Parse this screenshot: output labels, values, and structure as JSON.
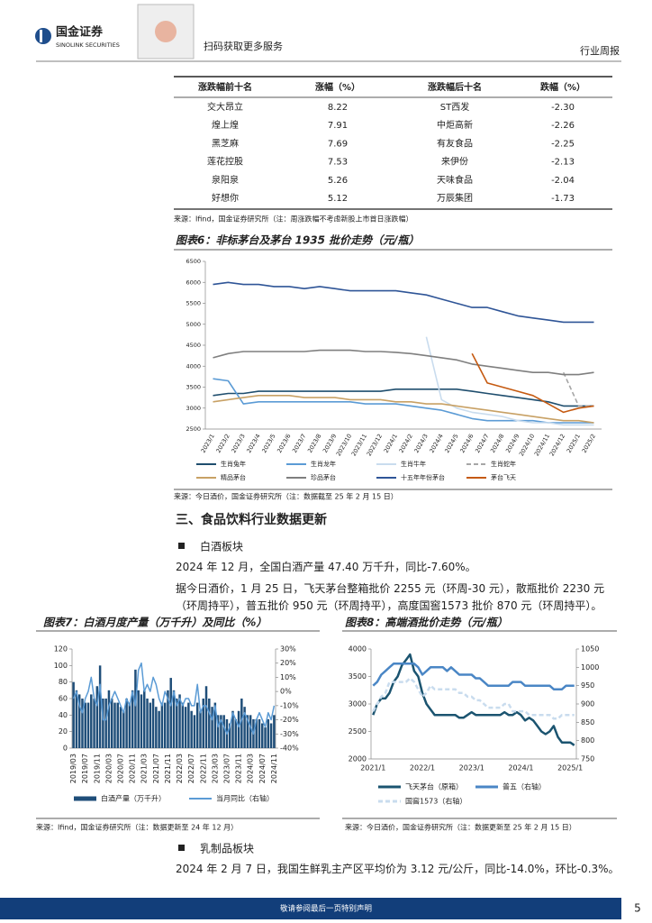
{
  "header": {
    "logo_cn": "国金证券",
    "logo_en": "SINOLINK SECURITIES",
    "qr_caption": "扫码获取更多服务",
    "report_type": "行业周报"
  },
  "table": {
    "headers": [
      "涨跌幅前十名",
      "涨幅（%）",
      "涨跌幅后十名",
      "跌幅（%）"
    ],
    "rows": [
      [
        "交大昂立",
        "8.22",
        "ST西发",
        "-2.30"
      ],
      [
        "煌上煌",
        "7.91",
        "中炬高新",
        "-2.26"
      ],
      [
        "黑芝麻",
        "7.69",
        "有友食品",
        "-2.25"
      ],
      [
        "莲花控股",
        "7.53",
        "来伊份",
        "-2.13"
      ],
      [
        "泉阳泉",
        "5.26",
        "天味食品",
        "-2.04"
      ],
      [
        "好想你",
        "5.12",
        "万辰集团",
        "-1.73"
      ]
    ]
  },
  "table_source": "来源：Ifind，国金证券研究所（注：周涨跌幅不考虑新股上市首日涨跌幅）",
  "charts": [
    {
      "type": "line",
      "title": "图表6：非标茅台及茅台 1935 批价走势（元/瓶）",
      "source": "来源：今日酒价，国金证券研究所（注：数据截至 25 年 2 月 15 日）",
      "categories": [
        "2023/1",
        "2023/2",
        "2023/3",
        "2023/4",
        "2023/5",
        "2023/6",
        "2023/7",
        "2023/8",
        "2023/9",
        "2023/10",
        "2023/11",
        "2023/12",
        "2024/1",
        "2024/2",
        "2024/3",
        "2024/4",
        "2024/5",
        "2024/6",
        "2024/7",
        "2024/8",
        "2024/9",
        "2024/10",
        "2024/11",
        "2024/12",
        "2025/1",
        "2025/2"
      ],
      "ylim": [
        2500,
        6500
      ],
      "yticks": [
        2500,
        3000,
        3500,
        4000,
        4500,
        5000,
        5500,
        6000,
        6500
      ],
      "series": [
        {
          "name": "生肖兔年",
          "color": "#1f4e6e",
          "values": [
            3300,
            3350,
            3350,
            3400,
            3400,
            3400,
            3400,
            3400,
            3400,
            3400,
            3400,
            3400,
            3450,
            3450,
            3450,
            3450,
            3450,
            3400,
            3350,
            3300,
            3250,
            3200,
            3150,
            3050,
            3050,
            3050
          ]
        },
        {
          "name": "生肖龙年",
          "color": "#5b9bd5",
          "values": [
            3700,
            3650,
            3100,
            3150,
            3150,
            3150,
            3150,
            3150,
            3150,
            3150,
            3100,
            3100,
            3100,
            3050,
            3000,
            2950,
            2850,
            2750,
            2700,
            2700,
            2700,
            2700,
            2650,
            2650,
            2650,
            2650
          ]
        },
        {
          "name": "生肖牛年",
          "color": "#c9dcee",
          "values": [
            null,
            null,
            null,
            null,
            null,
            null,
            null,
            null,
            null,
            null,
            null,
            null,
            null,
            null,
            4700,
            3200,
            3000,
            2900,
            2850,
            2800,
            2700,
            2650,
            2650,
            2600,
            2600,
            2600
          ]
        },
        {
          "name": "生肖蛇年",
          "color": "#a6a6a6",
          "dash": true,
          "values": [
            null,
            null,
            null,
            null,
            null,
            null,
            null,
            null,
            null,
            null,
            null,
            null,
            null,
            null,
            null,
            null,
            null,
            null,
            null,
            null,
            null,
            null,
            null,
            3850,
            3050,
            3050
          ]
        },
        {
          "name": "精品茅台",
          "color": "#c8a165",
          "values": [
            3150,
            3200,
            3250,
            3300,
            3300,
            3300,
            3250,
            3250,
            3250,
            3200,
            3200,
            3200,
            3150,
            3150,
            3100,
            3100,
            3050,
            3000,
            2950,
            2900,
            2850,
            2800,
            2750,
            2700,
            2700,
            2650
          ]
        },
        {
          "name": "珍品茅台",
          "color": "#7f7f7f",
          "values": [
            4200,
            4300,
            4350,
            4350,
            4350,
            4350,
            4350,
            4380,
            4380,
            4380,
            4350,
            4350,
            4330,
            4300,
            4250,
            4200,
            4150,
            4050,
            4000,
            3950,
            3900,
            3850,
            3850,
            3800,
            3800,
            3850
          ]
        },
        {
          "name": "十五年年份茅台",
          "color": "#2f5597",
          "values": [
            5950,
            6000,
            5950,
            5950,
            5900,
            5900,
            5850,
            5900,
            5850,
            5800,
            5800,
            5800,
            5800,
            5750,
            5700,
            5600,
            5500,
            5400,
            5400,
            5300,
            5200,
            5150,
            5100,
            5050,
            5050,
            5050
          ]
        },
        {
          "name": "茅台飞天",
          "color": "#c55a11",
          "values": [
            null,
            null,
            null,
            null,
            null,
            null,
            null,
            null,
            null,
            null,
            null,
            null,
            null,
            null,
            null,
            null,
            null,
            4300,
            3600,
            3500,
            3400,
            3300,
            3100,
            2900,
            3000,
            3050
          ]
        }
      ]
    },
    {
      "type": "bar-line",
      "title": "图表7：白酒月度产量（万千升）及同比（%）",
      "source": "来源：Ifind，国金证券研究所（注：数据更新至 24 年 12 月）",
      "categories": [
        "2019/03",
        null,
        null,
        null,
        "2019/07",
        null,
        null,
        null,
        "2019/11",
        null,
        null,
        null,
        "2020/03",
        null,
        null,
        null,
        "2020/07",
        null,
        null,
        null,
        "2020/11",
        null,
        null,
        null,
        "2021/03",
        null,
        null,
        null,
        "2021/07",
        null,
        null,
        null,
        "2021/11",
        null,
        null,
        null,
        "2022/03",
        null,
        null,
        null,
        "2022/07",
        null,
        null,
        null,
        "2022/11",
        null,
        null,
        null,
        "2023/03",
        null,
        null,
        null,
        "2023/07",
        null,
        null,
        null,
        "2023/11",
        null,
        null,
        null,
        "2024/03",
        null,
        null,
        null,
        "2024/07",
        null,
        null,
        null,
        "2024/11"
      ],
      "ylim": [
        0,
        120
      ],
      "yticks": [
        0,
        20,
        40,
        60,
        80,
        100,
        120
      ],
      "y2lim": [
        -40,
        30
      ],
      "y2ticks": [
        {
          "value": -40,
          "label": "-40%"
        },
        {
          "value": -30,
          "label": "-30%"
        },
        {
          "value": -20,
          "label": "-20%"
        },
        {
          "value": -10,
          "label": "-10%"
        },
        {
          "value": 0,
          "label": "0%"
        },
        {
          "value": 10,
          "label": "10%"
        },
        {
          "value": 20,
          "label": "20%"
        },
        {
          "value": 30,
          "label": "30%"
        }
      ],
      "series": [
        {
          "name": "白酒产量（万千升）",
          "type": "bar",
          "color": "#1f4e79",
          "values": [
            80,
            70,
            65,
            60,
            55,
            55,
            65,
            60,
            75,
            100,
            60,
            60,
            70,
            60,
            55,
            55,
            50,
            45,
            60,
            55,
            70,
            95,
            70,
            65,
            70,
            60,
            55,
            60,
            50,
            45,
            55,
            55,
            70,
            85,
            70,
            60,
            65,
            55,
            50,
            55,
            45,
            40,
            55,
            45,
            60,
            75,
            60,
            50,
            55,
            40,
            40,
            40,
            35,
            30,
            45,
            35,
            45,
            60,
            50,
            40,
            40,
            35,
            35,
            35,
            30,
            25,
            35,
            30,
            40
          ]
        },
        {
          "name": "当月同比（右轴）",
          "type": "line",
          "axis": "y2",
          "color": "#5b9bd5",
          "values": [
            -5,
            0,
            -10,
            -15,
            -5,
            0,
            10,
            -5,
            -10,
            5,
            -20,
            -20,
            -10,
            -5,
            0,
            -5,
            -10,
            -15,
            -5,
            -10,
            0,
            -10,
            15,
            20,
            0,
            5,
            0,
            10,
            5,
            -5,
            -10,
            0,
            -5,
            -10,
            0,
            -10,
            -5,
            -10,
            -5,
            -5,
            -10,
            -10,
            5,
            -15,
            -10,
            -10,
            -15,
            -20,
            -10,
            -25,
            -20,
            -25,
            -30,
            -25,
            -15,
            -20,
            -25,
            -20,
            -15,
            -20,
            -25,
            -30,
            -20,
            -15,
            -20,
            -25,
            -15,
            -20,
            -10
          ]
        }
      ]
    },
    {
      "type": "line",
      "title": "图表8：高端酒批价走势（元/瓶）",
      "source": "来源：今日酒价，国金证券研究所（注：数据更新至 25 年 2 月 15 日）",
      "categories": [
        "2021/1",
        null,
        null,
        null,
        null,
        null,
        null,
        null,
        null,
        null,
        null,
        null,
        "2022/1",
        null,
        null,
        null,
        null,
        null,
        null,
        null,
        null,
        null,
        null,
        null,
        "2023/1",
        null,
        null,
        null,
        null,
        null,
        null,
        null,
        null,
        null,
        null,
        null,
        "2024/1",
        null,
        null,
        null,
        null,
        null,
        null,
        null,
        null,
        null,
        null,
        null,
        "2025/1",
        null
      ],
      "ylim": [
        2000,
        4000
      ],
      "yticks": [
        2000,
        2500,
        3000,
        3500,
        4000
      ],
      "y2lim": [
        750,
        1050
      ],
      "y2ticks": [
        750,
        800,
        850,
        900,
        950,
        1000,
        1050
      ],
      "series": [
        {
          "name": "飞天茅台（原箱）",
          "color": "#1b5470",
          "values": [
            2800,
            3000,
            3100,
            3100,
            3200,
            3400,
            3500,
            3700,
            3800,
            3900,
            3600,
            3500,
            3200,
            3000,
            2900,
            2800,
            2800,
            2800,
            2800,
            2800,
            2800,
            2750,
            2750,
            2800,
            2850,
            2800,
            2800,
            2800,
            2800,
            2800,
            2800,
            2800,
            2850,
            2800,
            2800,
            2850,
            2800,
            2700,
            2750,
            2700,
            2600,
            2500,
            2450,
            2500,
            2600,
            2400,
            2300,
            2300,
            2300,
            2250
          ]
        },
        {
          "name": "普五（右轴）",
          "axis": "y2",
          "color": "#4a86c5",
          "values": [
            950,
            960,
            980,
            990,
            1000,
            1010,
            1010,
            1010,
            1010,
            1010,
            1010,
            1000,
            980,
            990,
            1000,
            1000,
            1000,
            1000,
            990,
            1000,
            990,
            980,
            980,
            980,
            980,
            970,
            970,
            960,
            950,
            950,
            950,
            950,
            950,
            950,
            960,
            960,
            960,
            950,
            950,
            950,
            950,
            950,
            950,
            950,
            940,
            940,
            940,
            950,
            950,
            950
          ]
        },
        {
          "name": "国窖1573（右轴）",
          "axis": "y2",
          "color": "#c9dcee",
          "dash": true,
          "values": [
            880,
            900,
            920,
            930,
            960,
            960,
            960,
            960,
            960,
            970,
            960,
            940,
            920,
            930,
            950,
            940,
            940,
            940,
            940,
            940,
            940,
            930,
            930,
            920,
            920,
            910,
            910,
            900,
            890,
            890,
            890,
            890,
            900,
            900,
            880,
            880,
            880,
            880,
            870,
            870,
            870,
            870,
            870,
            870,
            860,
            860,
            870,
            870,
            870,
            870
          ]
        }
      ]
    }
  ],
  "section": {
    "title": "三、食品饮料行业数据更新",
    "subsections": [
      {
        "title": "白酒板块",
        "paragraphs": [
          "2024 年 12 月，全国白酒产量 47.40 万千升，同比-7.60%。",
          "据今日酒价，1 月 25 日，飞天茅台整箱批价 2255 元（环周-30 元），散瓶批价 2230 元（环周持平），普五批价 950 元（环周持平），高度国窖1573 批价 870 元（环周持平）。"
        ]
      },
      {
        "title": "乳制品板块",
        "paragraphs": [
          "2024 年 2 月 7 日，我国生鲜乳主产区平均价为 3.12 元/公斤，同比-14.0%，环比-0.3%。"
        ]
      }
    ]
  },
  "footer": {
    "disclaimer": "敬请参阅最后一页特别声明",
    "page": 5
  }
}
